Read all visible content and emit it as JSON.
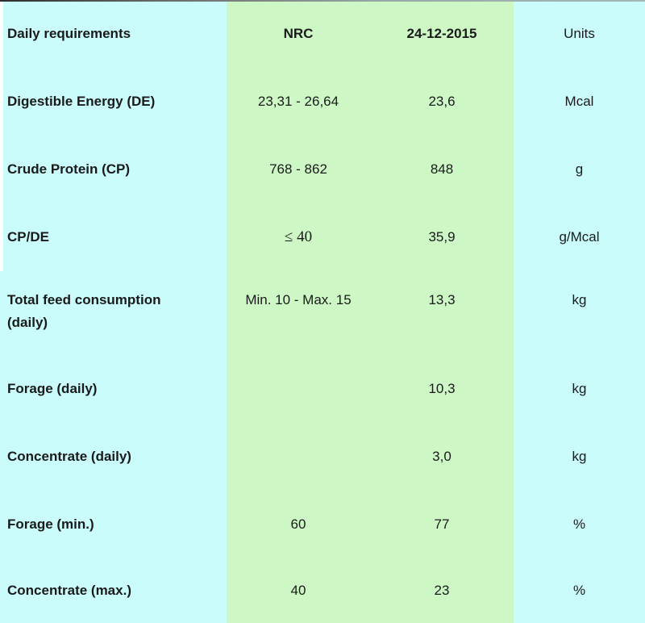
{
  "table": {
    "columns": [
      "Daily requirements",
      "NRC",
      "24-12-2015",
      "Units"
    ],
    "rows": [
      {
        "label": "Digestible Energy (DE)",
        "nrc": "23,31 - 26,64",
        "current": "23,6",
        "units": "Mcal"
      },
      {
        "label": "Crude Protein (CP)",
        "nrc": "768 - 862",
        "current": "848",
        "units": "g"
      },
      {
        "label": "CP/DE",
        "nrc": "≤ 40",
        "current": "35,9",
        "units": "g/Mcal"
      },
      {
        "label": "Total feed consumption\n(daily)",
        "nrc": "Min. 10 - Max. 15",
        "current": "13,3",
        "units": "kg"
      },
      {
        "label": "Forage (daily)",
        "nrc": "",
        "current": "10,3",
        "units": "kg"
      },
      {
        "label": "Concentrate (daily)",
        "nrc": "",
        "current": "3,0",
        "units": "kg"
      },
      {
        "label": "Forage (min.)",
        "nrc": "60",
        "current": "77",
        "units": "%"
      },
      {
        "label": "Concentrate (max.)",
        "nrc": "40",
        "current": "23",
        "units": "%"
      }
    ],
    "colors": {
      "background_cyan": "#cafcfc",
      "highlight_green": "#cdf8c6",
      "text": "#1a1a1a"
    }
  }
}
